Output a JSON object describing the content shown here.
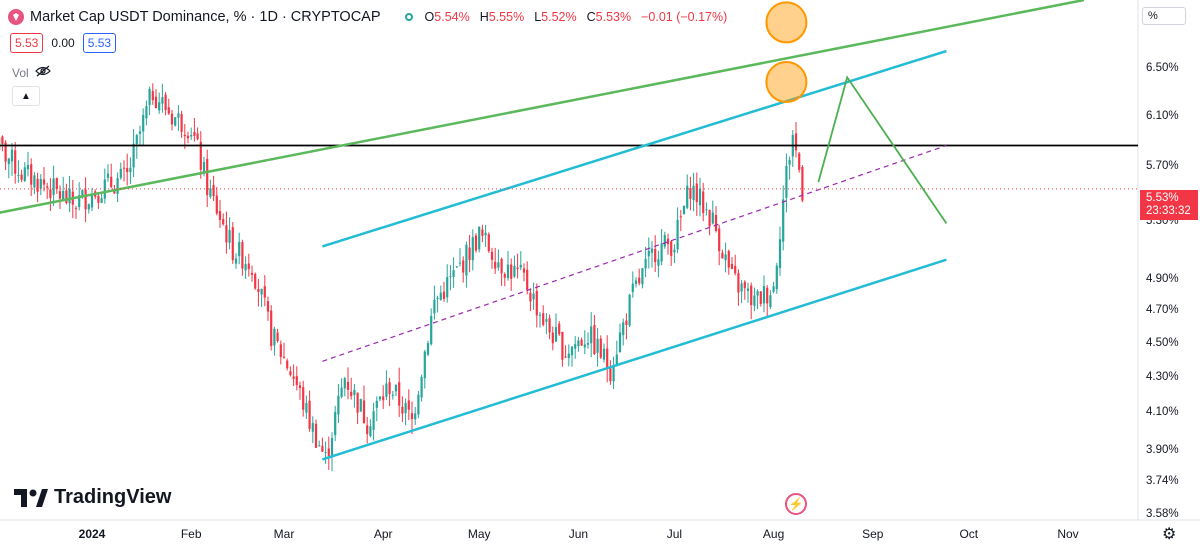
{
  "header": {
    "title": "Market Cap USDT Dominance, % · 1D · CRYPTOCAP",
    "open_label": "O",
    "open": "5.54%",
    "high_label": "H",
    "high": "5.55%",
    "low_label": "L",
    "low": "5.52%",
    "close_label": "C",
    "close": "5.53%",
    "change": "−0.01 (−0.17%)"
  },
  "price_boxes": {
    "bid": "5.53",
    "spread": "0.00",
    "ask": "5.53"
  },
  "volume_label": "Vol",
  "axis_unit": "%",
  "last_price": {
    "value": "5.53%",
    "countdown": "23:33:32"
  },
  "brand": "TradingView",
  "colors": {
    "up": "#26a69a",
    "down": "#f23645",
    "channel": "#22bcd4",
    "trendline": "#5cb85c",
    "projection": "#4caf50",
    "resistance": "#000000",
    "midline": "#9c27b0",
    "highlight": "#ff9800"
  },
  "chart_data": {
    "type": "candlestick",
    "title": "Market Cap USDT Dominance, % · 1D · CRYPTOCAP",
    "ylabel": "%",
    "ylim": [
      3.55,
      7.12
    ],
    "y_ticks": [
      "6.50%",
      "6.10%",
      "5.70%",
      "5.30%",
      "4.90%",
      "4.70%",
      "4.50%",
      "4.30%",
      "4.10%",
      "3.90%",
      "3.74%",
      "3.58%"
    ],
    "x_ticks": [
      "2024",
      "Feb",
      "Mar",
      "Apr",
      "May",
      "Jun",
      "Jul",
      "Aug",
      "Sep",
      "Oct",
      "Nov"
    ],
    "x_ticks_bold": [
      "2024"
    ],
    "series": [
      {
        "path": [
          [
            "2023-12-01",
            5.9
          ],
          [
            "2023-12-10",
            5.65
          ],
          [
            "2023-12-18",
            5.55
          ],
          [
            "2023-12-26",
            5.42
          ],
          [
            "2024-01-05",
            5.55
          ],
          [
            "2024-01-12",
            5.62
          ],
          [
            "2024-01-20",
            6.3
          ],
          [
            "2024-01-26",
            6.1
          ],
          [
            "2024-02-01",
            6.0
          ],
          [
            "2024-02-06",
            5.55
          ],
          [
            "2024-02-14",
            5.1
          ],
          [
            "2024-02-20",
            5.0
          ],
          [
            "2024-02-26",
            4.55
          ],
          [
            "2024-03-04",
            4.3
          ],
          [
            "2024-03-09",
            4.05
          ],
          [
            "2024-03-14",
            3.85
          ],
          [
            "2024-03-20",
            4.3
          ],
          [
            "2024-03-27",
            4.05
          ],
          [
            "2024-04-03",
            4.25
          ],
          [
            "2024-04-10",
            4.05
          ],
          [
            "2024-04-17",
            4.75
          ],
          [
            "2024-04-24",
            4.95
          ],
          [
            "2024-05-01",
            5.2
          ],
          [
            "2024-05-08",
            5.0
          ],
          [
            "2024-05-15",
            4.9
          ],
          [
            "2024-05-22",
            4.6
          ],
          [
            "2024-05-28",
            4.45
          ],
          [
            "2024-06-04",
            4.55
          ],
          [
            "2024-06-11",
            4.35
          ],
          [
            "2024-06-18",
            4.8
          ],
          [
            "2024-06-25",
            5.1
          ],
          [
            "2024-07-01",
            5.15
          ],
          [
            "2024-07-06",
            5.55
          ],
          [
            "2024-07-13",
            5.3
          ],
          [
            "2024-07-19",
            4.9
          ],
          [
            "2024-07-26",
            4.75
          ],
          [
            "2024-08-01",
            4.85
          ],
          [
            "2024-08-05",
            5.65
          ],
          [
            "2024-08-07",
            5.95
          ],
          [
            "2024-08-10",
            5.53
          ]
        ]
      }
    ],
    "annotations": [
      {
        "type": "resistance_line",
        "y": 5.86
      },
      {
        "type": "lower_channel",
        "from": [
          "2024-03-13",
          3.85
        ],
        "to": [
          "2024-09-24",
          5.03
        ]
      },
      {
        "type": "upper_channel",
        "from": [
          "2024-03-13",
          5.12
        ],
        "to": [
          "2024-09-24",
          6.65
        ]
      },
      {
        "type": "channel_midline",
        "from": [
          "2024-03-13",
          4.39
        ],
        "to": [
          "2024-09-24",
          5.86
        ]
      },
      {
        "type": "trend_line",
        "from": [
          "2023-11-25",
          5.32
        ],
        "to": [
          "2024-11-06",
          7.12
        ]
      },
      {
        "type": "projection",
        "points": [
          [
            "2024-08-15",
            5.58
          ],
          [
            "2024-08-24",
            6.42
          ],
          [
            "2024-09-24",
            5.28
          ]
        ]
      },
      {
        "type": "highlight_circle",
        "at": [
          "2024-08-05",
          6.38
        ]
      },
      {
        "type": "highlight_circle",
        "at": [
          "2024-08-05",
          6.91
        ]
      }
    ]
  }
}
